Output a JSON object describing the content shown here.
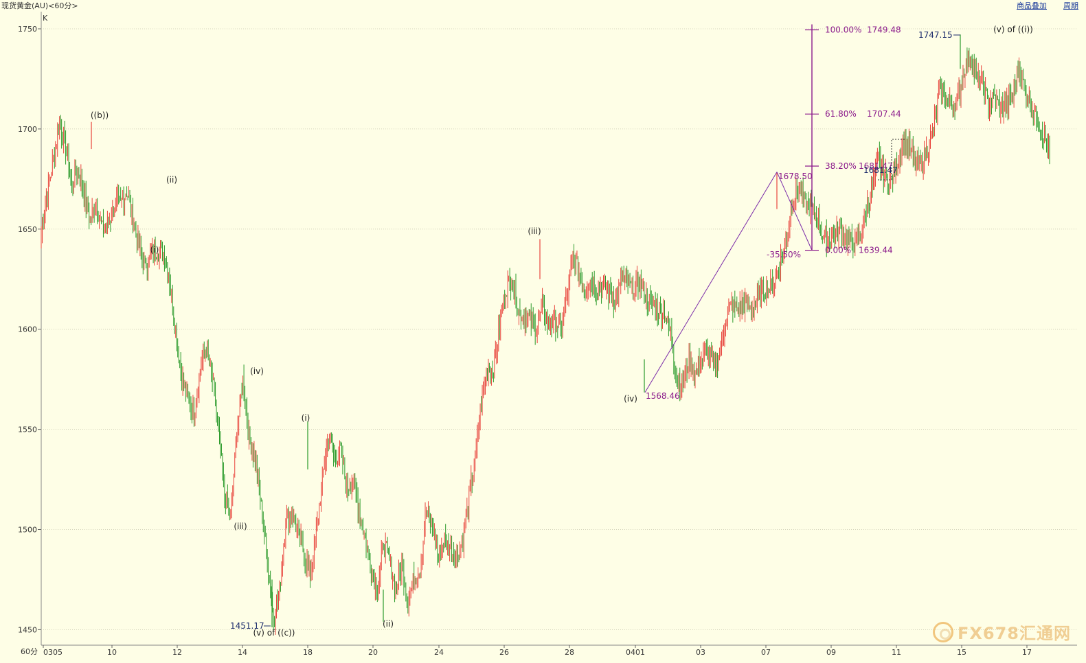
{
  "header": {
    "title": "现货黄金(AU)<60分>",
    "link_overlay": "商品叠加",
    "link_cycle": "周期"
  },
  "chart_data": {
    "type": "candlestick",
    "title": "现货黄金(AU)<60分>",
    "indicator": "K",
    "period_label": "60分",
    "ylim": [
      1443,
      1760
    ],
    "y_ticks": [
      1450,
      1500,
      1550,
      1600,
      1650,
      1700,
      1750
    ],
    "x_ticks": [
      "0305",
      "10",
      "12",
      "14",
      "18",
      "20",
      "24",
      "26",
      "28",
      "0401",
      "03",
      "07",
      "09",
      "11",
      "15",
      "17"
    ],
    "price_path": [
      [
        0,
        1648
      ],
      [
        3,
        1668
      ],
      [
        6,
        1685
      ],
      [
        7,
        1703
      ],
      [
        8,
        1690
      ],
      [
        9,
        1672
      ],
      [
        10,
        1680
      ],
      [
        11,
        1668
      ],
      [
        12,
        1655
      ],
      [
        13,
        1664
      ],
      [
        14,
        1650
      ],
      [
        15,
        1653
      ],
      [
        16,
        1662
      ],
      [
        17,
        1663
      ],
      [
        18,
        1669
      ],
      [
        19,
        1655
      ],
      [
        20,
        1641
      ],
      [
        21,
        1632
      ],
      [
        22,
        1636
      ],
      [
        23,
        1640
      ],
      [
        24,
        1638
      ],
      [
        25,
        1625
      ],
      [
        26,
        1600
      ],
      [
        27,
        1575
      ],
      [
        28,
        1565
      ],
      [
        29,
        1558
      ],
      [
        30,
        1580
      ],
      [
        31,
        1590
      ],
      [
        32,
        1575
      ],
      [
        33,
        1550
      ],
      [
        34,
        1516
      ],
      [
        35,
        1505
      ],
      [
        36,
        1548
      ],
      [
        37,
        1575
      ],
      [
        38,
        1545
      ],
      [
        39,
        1536
      ],
      [
        40,
        1511
      ],
      [
        41,
        1485
      ],
      [
        42,
        1455
      ],
      [
        43,
        1470
      ],
      [
        44,
        1504
      ],
      [
        45,
        1508
      ],
      [
        46,
        1498
      ],
      [
        47,
        1488
      ],
      [
        48,
        1478
      ],
      [
        49,
        1498
      ],
      [
        50,
        1525
      ],
      [
        51,
        1548
      ],
      [
        52,
        1535
      ],
      [
        53,
        1540
      ],
      [
        54,
        1520
      ],
      [
        55,
        1525
      ],
      [
        56,
        1510
      ],
      [
        57,
        1495
      ],
      [
        58,
        1480
      ],
      [
        59,
        1470
      ],
      [
        60,
        1493
      ],
      [
        61,
        1485
      ],
      [
        62,
        1470
      ],
      [
        63,
        1482
      ],
      [
        64,
        1465
      ],
      [
        65,
        1476
      ],
      [
        66,
        1480
      ],
      [
        67,
        1510
      ],
      [
        68,
        1502
      ],
      [
        69,
        1485
      ],
      [
        70,
        1495
      ],
      [
        71,
        1490
      ],
      [
        72,
        1486
      ],
      [
        73,
        1495
      ],
      [
        74,
        1516
      ],
      [
        75,
        1535
      ],
      [
        76,
        1563
      ],
      [
        77,
        1580
      ],
      [
        78,
        1580
      ],
      [
        79,
        1602
      ],
      [
        80,
        1620
      ],
      [
        81,
        1625
      ],
      [
        82,
        1610
      ],
      [
        83,
        1606
      ],
      [
        84,
        1605
      ],
      [
        85,
        1600
      ],
      [
        86,
        1612
      ],
      [
        87,
        1603
      ],
      [
        88,
        1605
      ],
      [
        89,
        1600
      ],
      [
        90,
        1615
      ],
      [
        91,
        1637
      ],
      [
        92,
        1628
      ],
      [
        93,
        1620
      ],
      [
        94,
        1625
      ],
      [
        95,
        1620
      ],
      [
        96,
        1623
      ],
      [
        97,
        1618
      ],
      [
        98,
        1614
      ],
      [
        99,
        1625
      ],
      [
        100,
        1623
      ],
      [
        101,
        1620
      ],
      [
        102,
        1624
      ],
      [
        103,
        1615
      ],
      [
        104,
        1612
      ],
      [
        105,
        1610
      ],
      [
        106,
        1608
      ],
      [
        107,
        1598
      ],
      [
        108,
        1575
      ],
      [
        109,
        1573
      ],
      [
        110,
        1585
      ],
      [
        111,
        1578
      ],
      [
        112,
        1585
      ],
      [
        113,
        1590
      ],
      [
        114,
        1583
      ],
      [
        115,
        1587
      ],
      [
        116,
        1605
      ],
      [
        117,
        1612
      ],
      [
        118,
        1610
      ],
      [
        119,
        1613
      ],
      [
        120,
        1610
      ],
      [
        121,
        1614
      ],
      [
        122,
        1620
      ],
      [
        123,
        1620
      ],
      [
        124,
        1624
      ],
      [
        125,
        1635
      ],
      [
        126,
        1645
      ],
      [
        127,
        1665
      ],
      [
        128,
        1672
      ],
      [
        129,
        1662
      ],
      [
        130,
        1660
      ],
      [
        131,
        1655
      ],
      [
        132,
        1646
      ],
      [
        133,
        1645
      ],
      [
        134,
        1648
      ],
      [
        135,
        1650
      ],
      [
        136,
        1645
      ],
      [
        137,
        1643
      ],
      [
        138,
        1646
      ],
      [
        139,
        1660
      ],
      [
        140,
        1670
      ],
      [
        141,
        1685
      ],
      [
        142,
        1677
      ],
      [
        143,
        1674
      ],
      [
        144,
        1681
      ],
      [
        145,
        1695
      ],
      [
        146,
        1690
      ],
      [
        147,
        1684
      ],
      [
        148,
        1682
      ],
      [
        149,
        1690
      ],
      [
        150,
        1700
      ],
      [
        151,
        1720
      ],
      [
        152,
        1715
      ],
      [
        153,
        1712
      ],
      [
        154,
        1715
      ],
      [
        155,
        1730
      ],
      [
        156,
        1737
      ],
      [
        157,
        1725
      ],
      [
        158,
        1722
      ],
      [
        159,
        1712
      ],
      [
        160,
        1716
      ],
      [
        161,
        1710
      ],
      [
        162,
        1712
      ],
      [
        163,
        1716
      ],
      [
        164,
        1732
      ],
      [
        165,
        1720
      ],
      [
        166,
        1712
      ],
      [
        167,
        1705
      ],
      [
        168,
        1697
      ],
      [
        169,
        1688
      ]
    ],
    "wave_labels": [
      {
        "text": "((b))",
        "price": 1703.5
      },
      {
        "text": "(i)",
        "price": 1641
      },
      {
        "text": "(ii)",
        "price": 1671
      },
      {
        "text": "(iii)",
        "price": 1504
      },
      {
        "text": "(iv)",
        "price": 1576
      },
      {
        "text": "(v) of ((c))",
        "price": 1451.17
      },
      {
        "text": "(i)",
        "price": 1554
      },
      {
        "text": "(ii)",
        "price": 1454
      },
      {
        "text": "(iii)",
        "price": 1645
      },
      {
        "text": "(iv)",
        "price": 1568.46
      },
      {
        "text": "(v) of ((i))",
        "price": 1747.15
      }
    ],
    "price_labels": [
      {
        "text": "1451.17",
        "price": 1451.17
      },
      {
        "text": "1747.15",
        "price": 1747.15
      },
      {
        "text": "1568.46",
        "price": 1568.46
      },
      {
        "text": "1678.50",
        "price": 1678.5
      },
      {
        "text": "1681.47",
        "price": 1681.47
      },
      {
        "text": "-35.50%",
        "price": 1639.44
      }
    ],
    "fibonacci": {
      "high": 1749.48,
      "low": 1639.44,
      "levels": [
        {
          "label": "100.00%",
          "value": "1749.48",
          "price": 1749.48
        },
        {
          "label": "61.80%",
          "value": "1707.44",
          "price": 1707.44
        },
        {
          "label": "38.20%",
          "value": "1681.47",
          "price": 1681.47
        },
        {
          "label": "0.00%",
          "value": "1639.44",
          "price": 1639.44
        }
      ]
    },
    "trend_lines": [
      {
        "from": 1568.46,
        "to": 1678.5
      },
      {
        "from": 1678.5,
        "to": 1639.44
      }
    ]
  },
  "watermark": {
    "text": "FX678汇通网"
  },
  "colors": {
    "up": "#e8433b",
    "down": "#2a9a2a",
    "grid": "#c8c8b0",
    "fib": "#8b1a8b",
    "trend": "#7a2aa8"
  }
}
